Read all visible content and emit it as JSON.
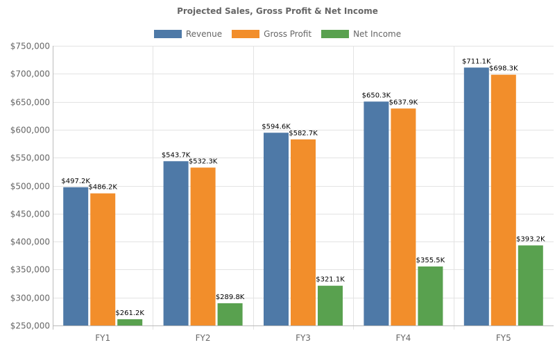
{
  "chart_data": {
    "type": "bar",
    "title": "Projected Sales, Gross Profit & Net Income",
    "categories": [
      "FY1",
      "FY2",
      "FY3",
      "FY4",
      "FY5"
    ],
    "series": [
      {
        "name": "Revenue",
        "color": "#4e79a7",
        "values": [
          497200,
          543700,
          594600,
          650300,
          711100
        ],
        "labels": [
          "$497.2K",
          "$543.7K",
          "$594.6K",
          "$650.3K",
          "$711.1K"
        ]
      },
      {
        "name": "Gross Profit",
        "color": "#f28e2b",
        "values": [
          486200,
          532300,
          582700,
          637900,
          698300
        ],
        "labels": [
          "$486.2K",
          "$532.3K",
          "$582.7K",
          "$637.9K",
          "$698.3K"
        ]
      },
      {
        "name": "Net Income",
        "color": "#59a14f",
        "values": [
          261200,
          289800,
          321100,
          355500,
          393200
        ],
        "labels": [
          "$261.2K",
          "$289.8K",
          "$321.1K",
          "$355.5K",
          "$393.2K"
        ]
      }
    ],
    "ylim": [
      250000,
      750000
    ],
    "yticks": [
      250000,
      300000,
      350000,
      400000,
      450000,
      500000,
      550000,
      600000,
      650000,
      700000,
      750000
    ],
    "ytick_labels": [
      "$250,000",
      "$300,000",
      "$350,000",
      "$400,000",
      "$450,000",
      "$500,000",
      "$550,000",
      "$600,000",
      "$650,000",
      "$700,000",
      "$750,000"
    ],
    "xlabel": "",
    "ylabel": "",
    "legend_position": "top",
    "grid": true
  }
}
